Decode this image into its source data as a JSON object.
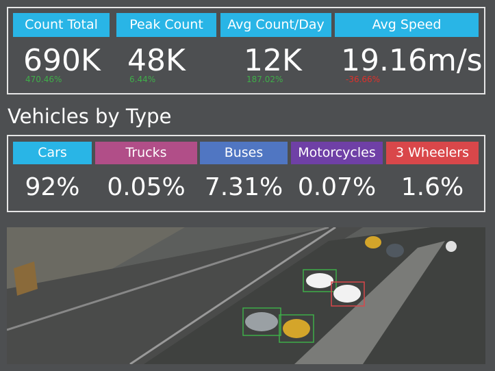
{
  "metrics": [
    {
      "label": "Count Total",
      "value": "690K",
      "change": "470.46%",
      "change_color": "#3fae49"
    },
    {
      "label": "Peak Count",
      "value": "48K",
      "change": "6.44%",
      "change_color": "#3fae49"
    },
    {
      "label": "Avg Count/Day",
      "value": "12K",
      "change": "187.02%",
      "change_color": "#3fae49"
    },
    {
      "label": "Avg Speed",
      "value": "19.16m/s",
      "change": "-36.66%",
      "change_color": "#e0302a"
    }
  ],
  "header_color": "#29b5e6",
  "section_title": "Vehicles by Type",
  "vehicle_types": [
    {
      "label": "Cars",
      "value": "92%",
      "color": "#29b5e6"
    },
    {
      "label": "Trucks",
      "value": "0.05%",
      "color": "#b14e88"
    },
    {
      "label": "Buses",
      "value": "7.31%",
      "color": "#5076c2"
    },
    {
      "label": "Motorcycles",
      "value": "0.07%",
      "color": "#6f40a6"
    },
    {
      "label": "3 Wheelers",
      "value": "1.6%",
      "color": "#d9474a"
    }
  ]
}
